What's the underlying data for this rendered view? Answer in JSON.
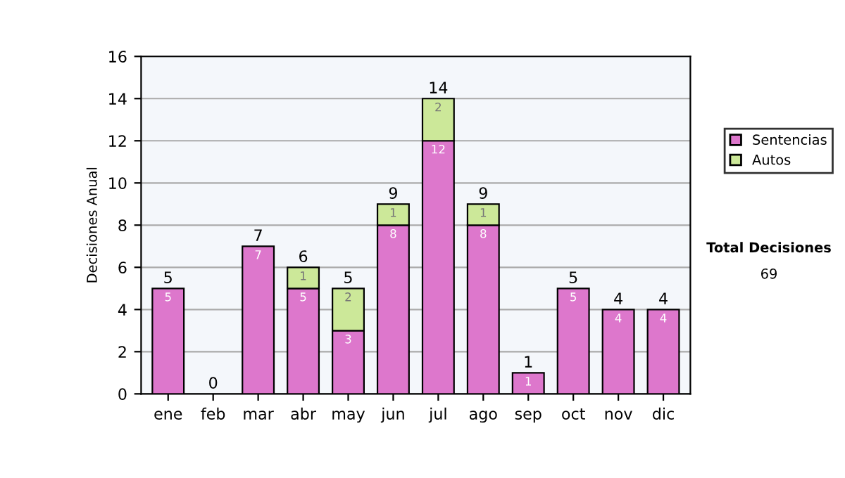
{
  "chart_data": {
    "type": "bar",
    "ylabel": "Decisiones Anual",
    "categories": [
      "ene",
      "feb",
      "mar",
      "abr",
      "may",
      "jun",
      "jul",
      "ago",
      "sep",
      "oct",
      "nov",
      "dic"
    ],
    "stacked": true,
    "series": [
      {
        "name": "Sentencias",
        "color": "#dd77cc",
        "values": [
          5,
          0,
          7,
          5,
          3,
          8,
          12,
          8,
          1,
          5,
          4,
          4
        ],
        "value_labels": [
          "5",
          null,
          "7",
          "5",
          "3",
          "8",
          "12",
          "8",
          "1",
          "5",
          "4",
          "4"
        ]
      },
      {
        "name": "Autos",
        "color": "#cce899",
        "values": [
          0,
          0,
          0,
          1,
          2,
          1,
          2,
          1,
          0,
          0,
          0,
          0
        ],
        "value_labels": [
          null,
          null,
          null,
          "1",
          "2",
          "1",
          "2",
          "1",
          null,
          null,
          null,
          null
        ]
      }
    ],
    "totals": [
      "5",
      "0",
      "7",
      "6",
      "5",
      "9",
      "14",
      "9",
      "1",
      "5",
      "4",
      "4"
    ],
    "ylim": [
      0,
      16
    ],
    "yticks": [
      0,
      2,
      4,
      6,
      8,
      10,
      12,
      14,
      16
    ],
    "grid": "y",
    "legend": "right",
    "annotations": [
      "Total Decisiones",
      "69"
    ]
  }
}
